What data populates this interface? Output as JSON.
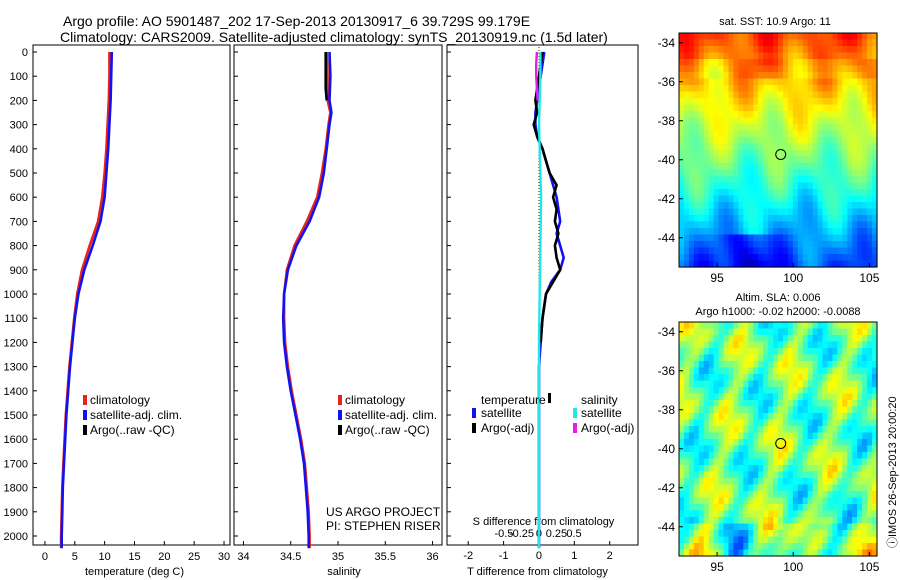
{
  "header": {
    "line1": "Argo profile: AO 5901487_202 17-Sep-2013 20130917_6 39.729S 99.179E",
    "line2": "Climatology: CARS2009. Satellite-adjusted climatology: synTS_20130919.nc (1.5d later)"
  },
  "credits": {
    "project": "US ARGO PROJECT",
    "pi": "PI: STEPHEN RISER"
  },
  "side_label": "ⓘIMOS 26-Sep-2013 20:00:20",
  "colors": {
    "climatology": "#e8231c",
    "satellite": "#1212ef",
    "argo": "#000000",
    "cyan": "#21e6e6",
    "magenta": "#e51ee5"
  },
  "chart_data": [
    {
      "type": "line",
      "xlabel": "temperature (deg C)",
      "ylabel": "",
      "xlim": [
        -2,
        31
      ],
      "ylim": [
        2050,
        0
      ],
      "x_ticks": [
        "0",
        "5",
        "10",
        "15",
        "20",
        "25",
        "30"
      ],
      "x_tick_values": [
        0,
        5,
        10,
        15,
        20,
        25,
        30
      ],
      "y_ticks": [
        "0",
        "100",
        "200",
        "300",
        "400",
        "500",
        "600",
        "700",
        "800",
        "900",
        "1000",
        "1100",
        "1200",
        "1300",
        "1400",
        "1500",
        "1600",
        "1700",
        "1800",
        "1900",
        "2000"
      ],
      "legend": [
        "climatology",
        "satellite-adj. clim.",
        "Argo(..raw -QC)"
      ],
      "legend_placement": "lower-right",
      "series": [
        {
          "name": "climatology",
          "color": "#e8231c",
          "depth": [
            0,
            100,
            200,
            300,
            400,
            500,
            600,
            700,
            800,
            900,
            1000,
            1100,
            1200,
            1300,
            1400,
            1500,
            1600,
            1700,
            1800,
            1900,
            2000,
            2050
          ],
          "values": [
            10.8,
            10.8,
            10.7,
            10.5,
            10.3,
            10.0,
            9.6,
            8.9,
            7.5,
            6.2,
            5.4,
            4.9,
            4.5,
            4.1,
            3.8,
            3.5,
            3.3,
            3.1,
            2.9,
            2.8,
            2.7,
            2.7
          ]
        },
        {
          "name": "satellite-adj. clim.",
          "color": "#1212ef",
          "depth": [
            0,
            100,
            200,
            300,
            400,
            500,
            600,
            700,
            800,
            900,
            1000,
            1100,
            1200,
            1300,
            1400,
            1500,
            1600,
            1700,
            1800,
            1900,
            2000,
            2050
          ],
          "values": [
            11.2,
            11.1,
            11.0,
            10.8,
            10.6,
            10.3,
            10.0,
            9.3,
            8.0,
            6.6,
            5.6,
            5.0,
            4.6,
            4.2,
            3.9,
            3.6,
            3.4,
            3.2,
            3.0,
            2.9,
            2.8,
            2.8
          ]
        }
      ]
    },
    {
      "type": "line",
      "xlabel": "salinity",
      "xlim": [
        33.9,
        36.1
      ],
      "ylim": [
        2050,
        0
      ],
      "x_ticks": [
        "34",
        "34.5",
        "35",
        "35.5",
        "36"
      ],
      "x_tick_values": [
        34,
        34.5,
        35,
        35.5,
        36
      ],
      "legend": [
        "climatology",
        "satellite-adj. clim.",
        "Argo(..raw -QC)"
      ],
      "legend_placement": "lower-right",
      "series": [
        {
          "name": "climatology",
          "color": "#e8231c",
          "depth": [
            0,
            100,
            200,
            250,
            300,
            400,
            500,
            600,
            700,
            800,
            900,
            1000,
            1100,
            1200,
            1300,
            1400,
            1500,
            1600,
            1700,
            1800,
            1900,
            2000,
            2050
          ],
          "values": [
            34.88,
            34.89,
            34.89,
            34.92,
            34.9,
            34.87,
            34.83,
            34.78,
            34.67,
            34.54,
            34.46,
            34.43,
            34.43,
            34.44,
            34.47,
            34.51,
            34.56,
            34.61,
            34.65,
            34.67,
            34.69,
            34.7,
            34.7
          ]
        },
        {
          "name": "satellite-adj. clim.",
          "color": "#1212ef",
          "depth": [
            0,
            100,
            200,
            250,
            300,
            400,
            500,
            600,
            700,
            800,
            900,
            1000,
            1100,
            1200,
            1300,
            1400,
            1500,
            1600,
            1700,
            1800,
            1900,
            2000,
            2050
          ],
          "values": [
            34.91,
            34.92,
            34.91,
            34.93,
            34.91,
            34.88,
            34.85,
            34.8,
            34.7,
            34.56,
            34.47,
            34.43,
            34.42,
            34.43,
            34.46,
            34.5,
            34.55,
            34.6,
            34.64,
            34.66,
            34.68,
            34.69,
            34.69
          ]
        },
        {
          "name": "Argo(..raw -QC)",
          "color": "#000000",
          "depth": [
            0,
            50,
            100,
            150,
            200
          ],
          "values": [
            34.87,
            34.87,
            34.87,
            34.87,
            34.88
          ]
        }
      ]
    },
    {
      "type": "line",
      "xlabel": "T difference from climatology",
      "xlabel2": "S difference from climatology",
      "xlim": [
        -2.6,
        2.8
      ],
      "ylim": [
        2050,
        0
      ],
      "x_ticks": [
        "-2",
        "-1",
        "0",
        "1",
        "2"
      ],
      "x_tick_values": [
        -2,
        -1,
        0,
        1,
        2
      ],
      "x2_ticks": [
        "-0.5",
        "-0.25",
        "0",
        "0.25",
        "0.5"
      ],
      "x2_tick_values": [
        -0.5,
        -0.25,
        0,
        0.25,
        0.5
      ],
      "legend_groups": {
        "temperature": [
          "satellite",
          "Argo(-adj)"
        ],
        "salinity": [
          "satellite",
          "Argo(-adj)"
        ]
      },
      "series": [
        {
          "name": "temperature satellite",
          "color": "#1212ef",
          "depth": [
            0,
            50,
            100,
            150,
            200,
            250,
            300,
            350,
            400,
            450,
            500,
            550,
            600,
            650,
            700,
            750,
            800,
            850,
            900,
            950,
            1000,
            1100,
            1200,
            1300,
            1400,
            1600,
            1800,
            2000,
            2050
          ],
          "values": [
            0.15,
            0.1,
            0.05,
            0.0,
            -0.05,
            -0.1,
            -0.1,
            -0.05,
            0.1,
            0.2,
            0.3,
            0.4,
            0.5,
            0.55,
            0.6,
            0.5,
            0.6,
            0.7,
            0.6,
            0.35,
            0.2,
            0.1,
            0.05,
            0.0,
            0.0,
            0.0,
            0.0,
            0.0,
            0.0
          ]
        },
        {
          "name": "temperature Argo(-adj)",
          "color": "#000000",
          "depth": [
            0,
            50,
            100,
            150,
            200,
            250,
            300,
            350,
            400,
            450,
            500,
            550,
            600,
            650,
            700,
            750,
            800,
            850,
            900,
            950,
            1000,
            1100,
            1200
          ],
          "values": [
            0.1,
            0.05,
            0.0,
            -0.05,
            -0.1,
            -0.05,
            -0.15,
            -0.05,
            0.1,
            0.2,
            0.3,
            0.5,
            0.4,
            0.5,
            0.45,
            0.55,
            0.45,
            0.5,
            0.6,
            0.4,
            0.2,
            0.1,
            0.05
          ]
        },
        {
          "name": "salinity satellite",
          "color": "#21e6e6",
          "depth": [
            0,
            100,
            200,
            300,
            400,
            500,
            600,
            800,
            1000,
            1200,
            1400,
            1600,
            1800,
            2000,
            2050
          ],
          "values": [
            0.02,
            0.02,
            0.01,
            0.0,
            0.01,
            0.02,
            0.03,
            0.02,
            0.01,
            0.0,
            0.0,
            0.0,
            0.0,
            0.0,
            0.0
          ]
        },
        {
          "name": "salinity Argo(-adj)",
          "color": "#e51ee5",
          "depth": [
            0,
            50,
            100,
            150,
            200
          ],
          "values": [
            -0.03,
            -0.04,
            -0.04,
            -0.03,
            -0.02
          ]
        }
      ]
    },
    {
      "type": "heatmap",
      "title": "sat. SST: 10.9 Argo: 11",
      "xlim": [
        92.5,
        105.5
      ],
      "ylim": [
        -45.5,
        -33.5
      ],
      "x_ticks": [
        "95",
        "100",
        "105"
      ],
      "x_tick_values": [
        95,
        100,
        105
      ],
      "y_ticks": [
        "-34",
        "-36",
        "-38",
        "-40",
        "-42",
        "-44"
      ],
      "y_tick_values": [
        -34,
        -36,
        -38,
        -40,
        -42,
        -44
      ],
      "marker": {
        "lon": 99.179,
        "lat": -39.729
      }
    },
    {
      "type": "heatmap",
      "title": "Altim. SLA: 0.006",
      "subtitle": "Argo h1000: -0.02 h2000: -0.0088",
      "xlim": [
        92.5,
        105.5
      ],
      "ylim": [
        -45.5,
        -33.5
      ],
      "x_ticks": [
        "95",
        "100",
        "105"
      ],
      "x_tick_values": [
        95,
        100,
        105
      ],
      "y_ticks": [
        "-34",
        "-36",
        "-38",
        "-40",
        "-42",
        "-44"
      ],
      "y_tick_values": [
        -34,
        -36,
        -38,
        -40,
        -42,
        -44
      ],
      "marker": {
        "lon": 99.179,
        "lat": -39.729
      }
    }
  ]
}
